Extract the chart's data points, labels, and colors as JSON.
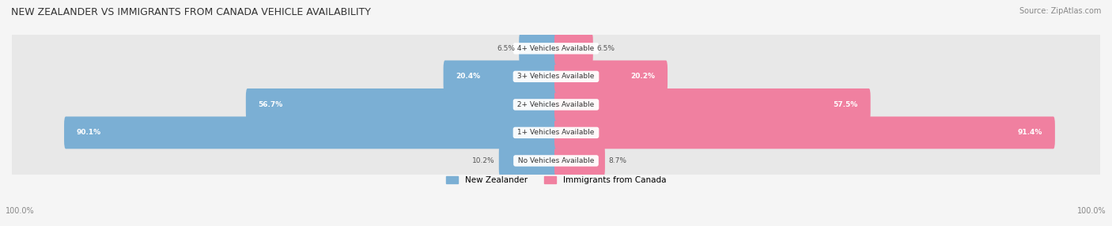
{
  "title": "NEW ZEALANDER VS IMMIGRANTS FROM CANADA VEHICLE AVAILABILITY",
  "source": "Source: ZipAtlas.com",
  "categories": [
    "No Vehicles Available",
    "1+ Vehicles Available",
    "2+ Vehicles Available",
    "3+ Vehicles Available",
    "4+ Vehicles Available"
  ],
  "nz_values": [
    10.2,
    90.1,
    56.7,
    20.4,
    6.5
  ],
  "ca_values": [
    8.7,
    91.4,
    57.5,
    20.2,
    6.5
  ],
  "nz_color": "#7bafd4",
  "ca_color": "#f080a0",
  "max_value": 100.0,
  "bar_height": 0.55,
  "background_color": "#f5f5f5"
}
